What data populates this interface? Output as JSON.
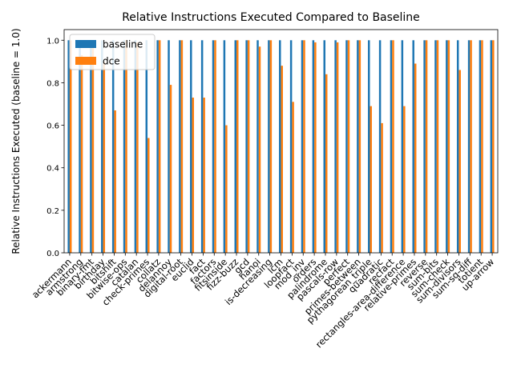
{
  "chart_data": {
    "type": "bar",
    "title": "Relative Instructions Executed Compared to Baseline",
    "xlabel": "",
    "ylabel": "Relative Instructions Executed (baseline = 1.0)",
    "ylim": [
      0,
      1.05
    ],
    "yticks": [
      0.0,
      0.2,
      0.4,
      0.6,
      0.8,
      1.0
    ],
    "ytick_labels": [
      "0.0",
      "0.2",
      "0.4",
      "0.6",
      "0.8",
      "1.0"
    ],
    "grid": false,
    "legend_position": "upper-left",
    "categories": [
      "ackermann",
      "armstrong",
      "binary-fmt",
      "birthday",
      "bitshift",
      "bitwise-ops",
      "catalan",
      "check-primes",
      "collatz",
      "delannoy",
      "digital-root",
      "euclid",
      "fact",
      "factors",
      "fitsinside",
      "fizz-buzz",
      "gcd",
      "hanoi",
      "is-decreasing",
      "lcm",
      "loopfact",
      "mod_inv",
      "orders",
      "palindrome",
      "pascals-row",
      "perfect",
      "primes-between",
      "pythagorean_triple",
      "quadratic",
      "recfact",
      "rectangles-area-difference",
      "relative-primes",
      "reverse",
      "sum-bits",
      "sum-check",
      "sum-divisors",
      "sum-sq-diff",
      "totient",
      "up-arrow"
    ],
    "series": [
      {
        "name": "baseline",
        "color": "#1f77b4",
        "values": [
          1,
          1,
          1,
          1,
          1,
          1,
          1,
          1,
          1,
          1,
          1,
          1,
          1,
          1,
          1,
          1,
          1,
          1,
          1,
          1,
          1,
          1,
          1,
          1,
          1,
          1,
          1,
          1,
          1,
          1,
          1,
          1,
          1,
          1,
          1,
          1,
          1,
          1,
          1
        ]
      },
      {
        "name": "dce",
        "color": "#ff7f0e",
        "values": [
          1.0,
          0.93,
          0.99,
          0.9,
          0.67,
          1.0,
          0.99,
          0.54,
          1.0,
          0.79,
          1.0,
          0.73,
          0.73,
          1.0,
          0.6,
          1.0,
          1.0,
          0.97,
          1.0,
          0.88,
          0.71,
          1.0,
          0.99,
          0.84,
          0.99,
          1.0,
          1.0,
          0.69,
          0.61,
          1.0,
          0.69,
          0.89,
          1.0,
          1.0,
          1.0,
          0.86,
          1.0,
          1.0,
          1.0
        ]
      }
    ]
  }
}
